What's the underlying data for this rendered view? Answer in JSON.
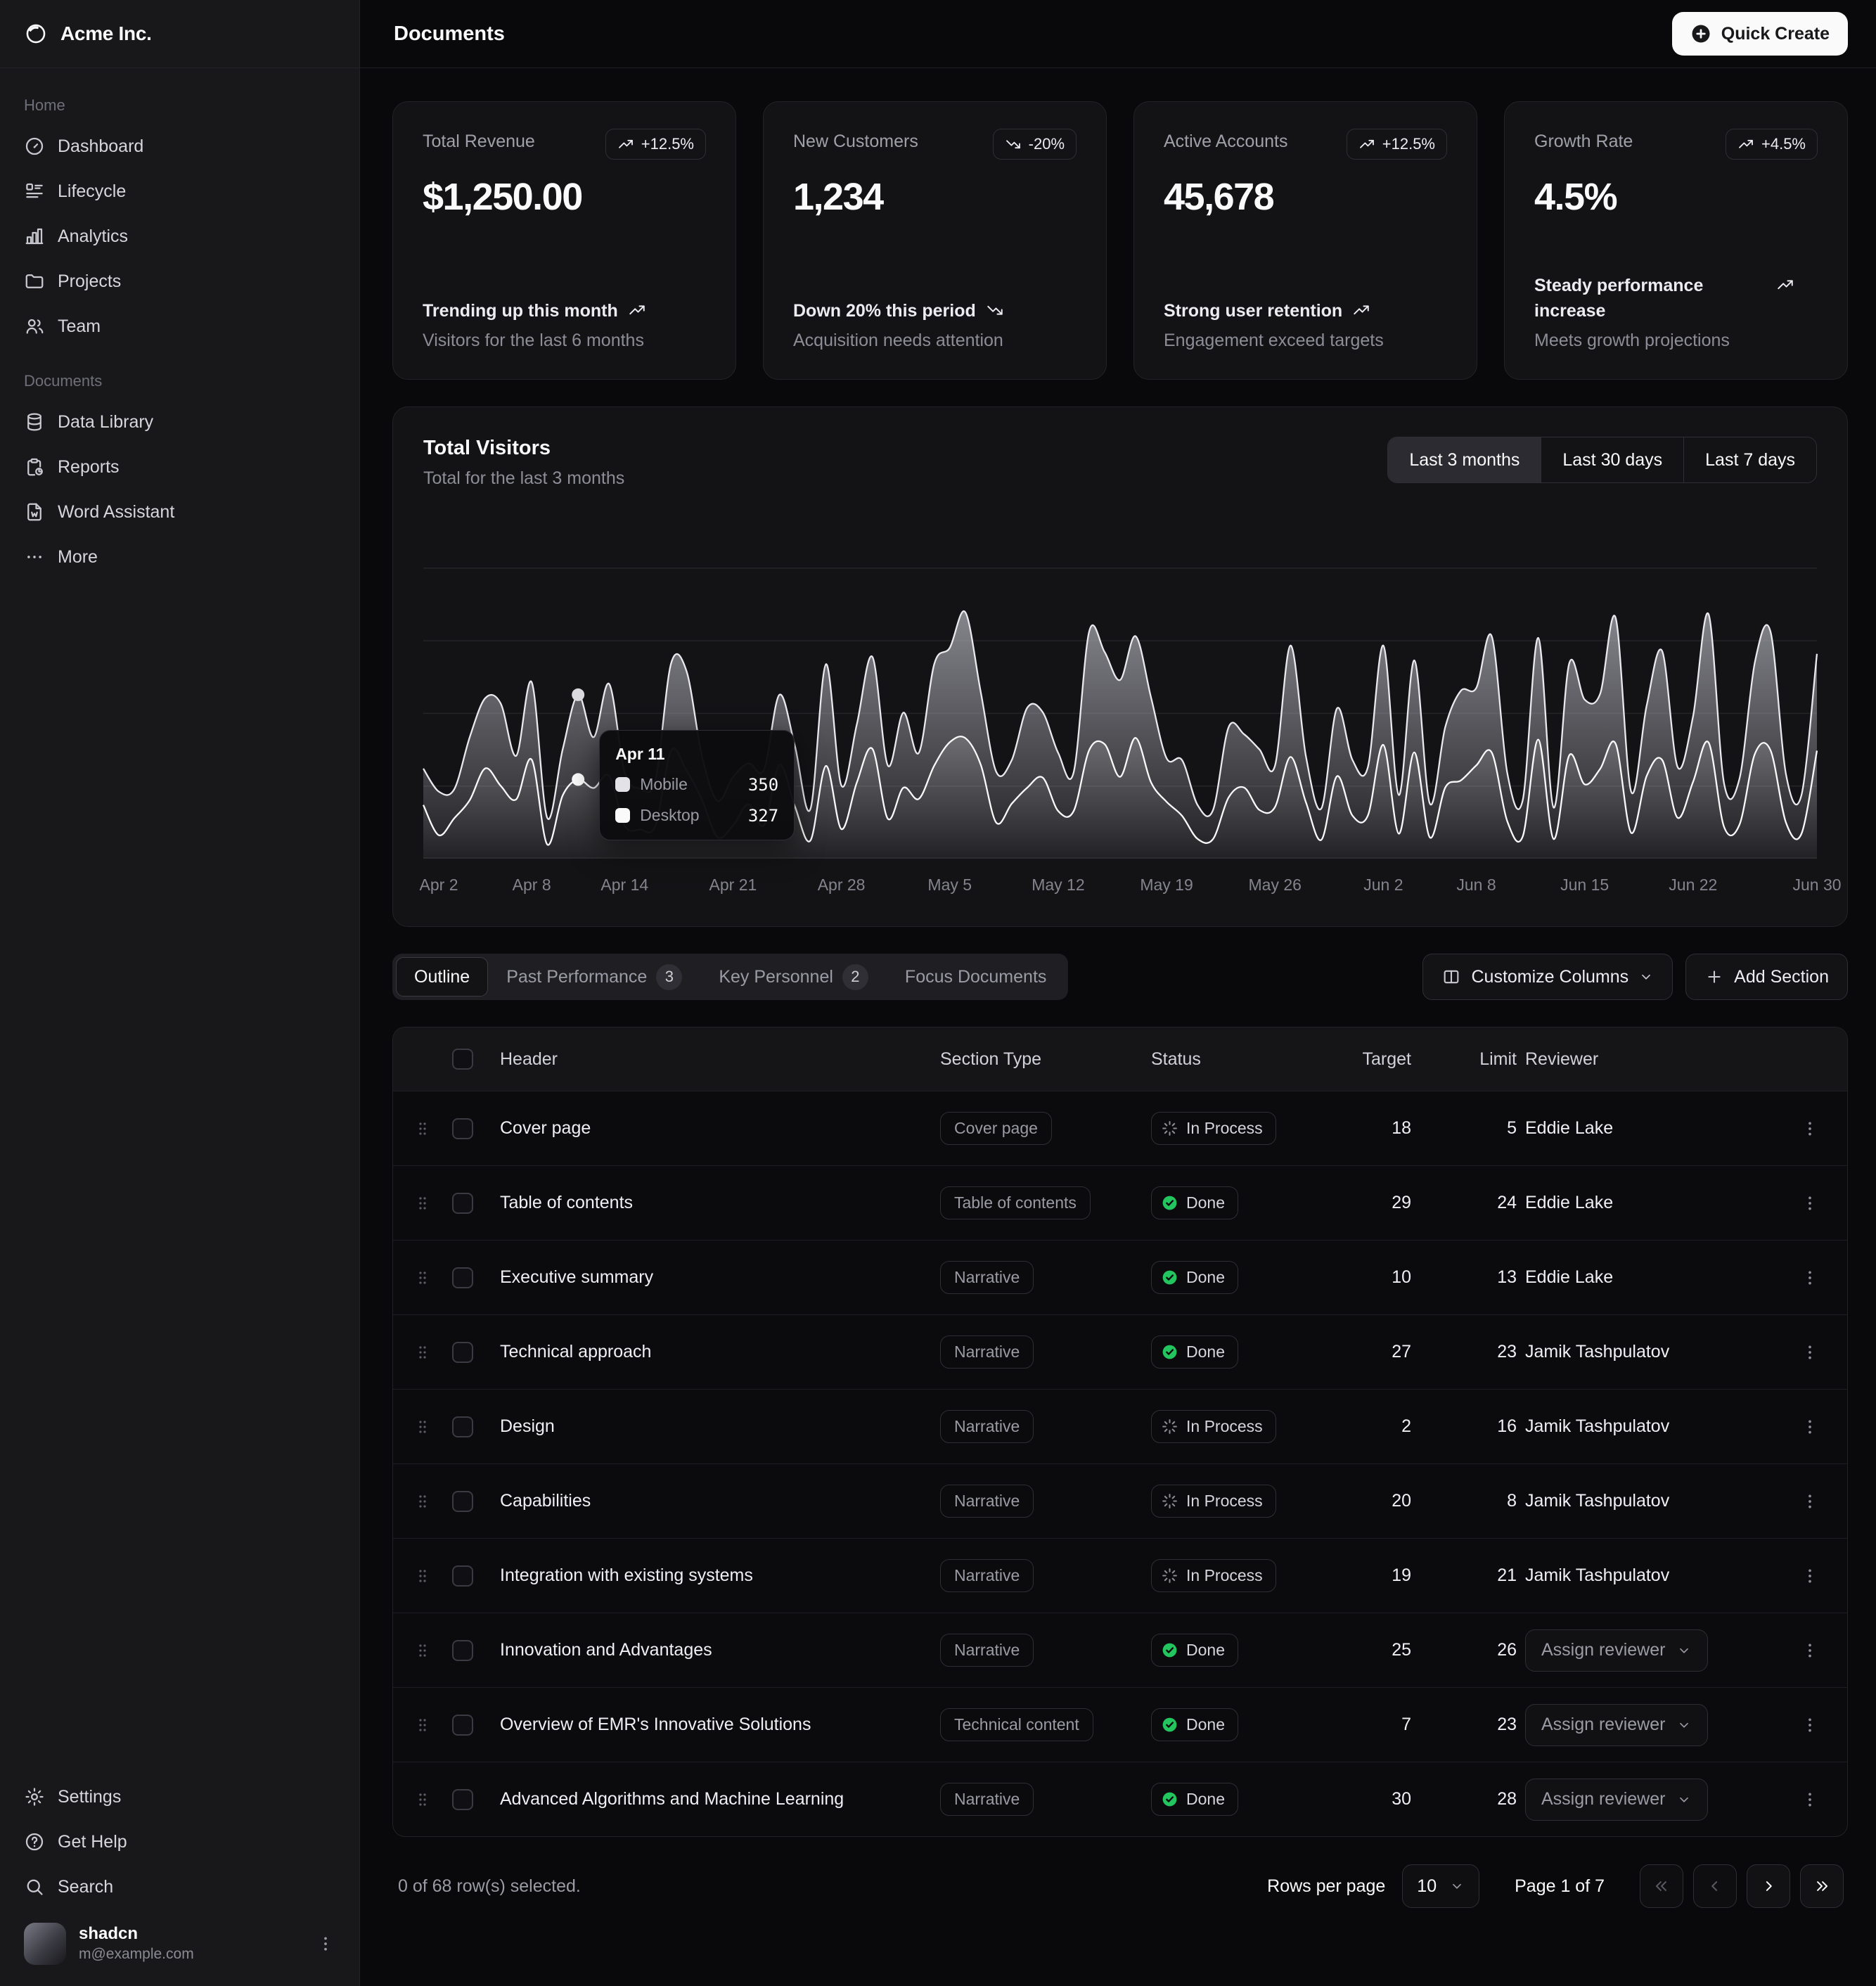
{
  "brand": {
    "name": "Acme Inc."
  },
  "header": {
    "title": "Documents",
    "quick_create_label": "Quick Create"
  },
  "sidebar": {
    "groups": [
      {
        "label": "Home",
        "items": [
          {
            "icon": "dashboard",
            "label": "Dashboard"
          },
          {
            "icon": "lifecycle",
            "label": "Lifecycle"
          },
          {
            "icon": "analytics",
            "label": "Analytics"
          },
          {
            "icon": "projects",
            "label": "Projects"
          },
          {
            "icon": "team",
            "label": "Team"
          }
        ]
      },
      {
        "label": "Documents",
        "items": [
          {
            "icon": "database",
            "label": "Data Library"
          },
          {
            "icon": "reports",
            "label": "Reports"
          },
          {
            "icon": "word",
            "label": "Word Assistant"
          },
          {
            "icon": "dots",
            "label": "More"
          }
        ]
      }
    ],
    "footer_items": [
      {
        "icon": "settings",
        "label": "Settings"
      },
      {
        "icon": "help",
        "label": "Get Help"
      },
      {
        "icon": "search",
        "label": "Search"
      }
    ],
    "user": {
      "name": "shadcn",
      "email": "m@example.com"
    }
  },
  "stats": [
    {
      "title": "Total Revenue",
      "badge": "+12.5%",
      "trend": "up",
      "value": "$1,250.00",
      "line1": "Trending up this month",
      "line2": "Visitors for the last 6 months"
    },
    {
      "title": "New Customers",
      "badge": "-20%",
      "trend": "down",
      "value": "1,234",
      "line1": "Down 20% this period",
      "line2": "Acquisition needs attention"
    },
    {
      "title": "Active Accounts",
      "badge": "+12.5%",
      "trend": "up",
      "value": "45,678",
      "line1": "Strong user retention",
      "line2": "Engagement exceed targets"
    },
    {
      "title": "Growth Rate",
      "badge": "+4.5%",
      "trend": "up",
      "value": "4.5%",
      "line1": "Steady performance increase",
      "line2": "Meets growth projections"
    }
  ],
  "chart": {
    "title": "Total Visitors",
    "subtitle": "Total for the last 3 months",
    "range_options": [
      "Last 3 months",
      "Last 30 days",
      "Last 7 days"
    ],
    "selected_range": "Last 3 months",
    "tooltip": {
      "date": "Apr 11",
      "rows": [
        {
          "label": "Mobile",
          "value": "350"
        },
        {
          "label": "Desktop",
          "value": "327"
        }
      ]
    }
  },
  "chart_data": {
    "type": "area",
    "stacked": true,
    "title": "Total Visitors",
    "legend_position": "none",
    "grid": true,
    "ylim": [
      0,
      1400
    ],
    "gridline_values": [
      300,
      600,
      900,
      1200
    ],
    "highlight_x": "Apr 11",
    "x": [
      "Apr 1",
      "Apr 2",
      "Apr 3",
      "Apr 4",
      "Apr 5",
      "Apr 6",
      "Apr 7",
      "Apr 8",
      "Apr 9",
      "Apr 10",
      "Apr 11",
      "Apr 12",
      "Apr 13",
      "Apr 14",
      "Apr 15",
      "Apr 16",
      "Apr 17",
      "Apr 18",
      "Apr 19",
      "Apr 20",
      "Apr 21",
      "Apr 22",
      "Apr 23",
      "Apr 24",
      "Apr 25",
      "Apr 26",
      "Apr 27",
      "Apr 28",
      "Apr 29",
      "Apr 30",
      "May 1",
      "May 2",
      "May 3",
      "May 4",
      "May 5",
      "May 6",
      "May 7",
      "May 8",
      "May 9",
      "May 10",
      "May 11",
      "May 12",
      "May 13",
      "May 14",
      "May 15",
      "May 16",
      "May 17",
      "May 18",
      "May 19",
      "May 20",
      "May 21",
      "May 22",
      "May 23",
      "May 24",
      "May 25",
      "May 26",
      "May 27",
      "May 28",
      "May 29",
      "May 30",
      "May 31",
      "Jun 1",
      "Jun 2",
      "Jun 3",
      "Jun 4",
      "Jun 5",
      "Jun 6",
      "Jun 7",
      "Jun 8",
      "Jun 9",
      "Jun 10",
      "Jun 11",
      "Jun 12",
      "Jun 13",
      "Jun 14",
      "Jun 15",
      "Jun 16",
      "Jun 17",
      "Jun 18",
      "Jun 19",
      "Jun 20",
      "Jun 21",
      "Jun 22",
      "Jun 23",
      "Jun 24",
      "Jun 25",
      "Jun 26",
      "Jun 27",
      "Jun 28",
      "Jun 29",
      "Jun 30"
    ],
    "series": [
      {
        "name": "Desktop",
        "values": [
          222,
          97,
          167,
          242,
          373,
          301,
          245,
          409,
          59,
          261,
          327,
          292,
          342,
          137,
          120,
          138,
          446,
          364,
          243,
          89,
          137,
          224,
          138,
          387,
          215,
          75,
          383,
          122,
          315,
          454,
          165,
          293,
          247,
          385,
          481,
          498,
          388,
          149,
          227,
          293,
          335,
          197,
          197,
          448,
          473,
          338,
          499,
          315,
          235,
          177,
          82,
          81,
          252,
          294,
          201,
          213,
          420,
          233,
          78,
          340,
          178,
          178,
          470,
          103,
          439,
          88,
          294,
          323,
          385,
          438,
          155,
          92,
          492,
          81,
          426,
          307,
          371,
          475,
          107,
          341,
          408,
          169,
          317,
          480,
          132,
          141,
          434,
          448,
          149,
          103,
          446
        ]
      },
      {
        "name": "Mobile",
        "values": [
          150,
          180,
          120,
          260,
          290,
          340,
          180,
          320,
          110,
          190,
          350,
          210,
          380,
          220,
          170,
          190,
          360,
          410,
          180,
          150,
          200,
          170,
          230,
          290,
          250,
          130,
          420,
          180,
          240,
          380,
          220,
          310,
          190,
          420,
          390,
          520,
          300,
          210,
          180,
          330,
          270,
          240,
          160,
          490,
          380,
          400,
          420,
          350,
          180,
          230,
          140,
          120,
          290,
          220,
          250,
          170,
          460,
          190,
          130,
          280,
          230,
          200,
          410,
          160,
          380,
          140,
          250,
          370,
          320,
          480,
          200,
          150,
          420,
          130,
          380,
          350,
          310,
          520,
          170,
          290,
          450,
          210,
          270,
          530,
          180,
          190,
          380,
          490,
          200,
          160,
          400
        ]
      }
    ],
    "x_ticks": [
      {
        "label": "Apr 2",
        "index": 1
      },
      {
        "label": "Apr 8",
        "index": 7
      },
      {
        "label": "Apr 14",
        "index": 13
      },
      {
        "label": "Apr 21",
        "index": 20
      },
      {
        "label": "Apr 28",
        "index": 27
      },
      {
        "label": "May 5",
        "index": 34
      },
      {
        "label": "May 12",
        "index": 41
      },
      {
        "label": "May 19",
        "index": 48
      },
      {
        "label": "May 26",
        "index": 55
      },
      {
        "label": "Jun 2",
        "index": 62
      },
      {
        "label": "Jun 8",
        "index": 68
      },
      {
        "label": "Jun 15",
        "index": 75
      },
      {
        "label": "Jun 22",
        "index": 82
      },
      {
        "label": "Jun 30",
        "index": 90
      }
    ]
  },
  "tabs": [
    {
      "label": "Outline",
      "active": true
    },
    {
      "label": "Past Performance",
      "badge": "3"
    },
    {
      "label": "Key Personnel",
      "badge": "2"
    },
    {
      "label": "Focus Documents"
    }
  ],
  "table_actions": {
    "customize_label": "Customize Columns",
    "add_label": "Add Section"
  },
  "table": {
    "columns": [
      "Header",
      "Section Type",
      "Status",
      "Target",
      "Limit",
      "Reviewer"
    ],
    "assign_label": "Assign reviewer",
    "rows": [
      {
        "header": "Cover page",
        "type": "Cover page",
        "status": "In Process",
        "target": "18",
        "limit": "5",
        "reviewer": "Eddie Lake"
      },
      {
        "header": "Table of contents",
        "type": "Table of contents",
        "status": "Done",
        "target": "29",
        "limit": "24",
        "reviewer": "Eddie Lake"
      },
      {
        "header": "Executive summary",
        "type": "Narrative",
        "status": "Done",
        "target": "10",
        "limit": "13",
        "reviewer": "Eddie Lake"
      },
      {
        "header": "Technical approach",
        "type": "Narrative",
        "status": "Done",
        "target": "27",
        "limit": "23",
        "reviewer": "Jamik Tashpulatov"
      },
      {
        "header": "Design",
        "type": "Narrative",
        "status": "In Process",
        "target": "2",
        "limit": "16",
        "reviewer": "Jamik Tashpulatov"
      },
      {
        "header": "Capabilities",
        "type": "Narrative",
        "status": "In Process",
        "target": "20",
        "limit": "8",
        "reviewer": "Jamik Tashpulatov"
      },
      {
        "header": "Integration with existing systems",
        "type": "Narrative",
        "status": "In Process",
        "target": "19",
        "limit": "21",
        "reviewer": "Jamik Tashpulatov"
      },
      {
        "header": "Innovation and Advantages",
        "type": "Narrative",
        "status": "Done",
        "target": "25",
        "limit": "26",
        "reviewer": null
      },
      {
        "header": "Overview of EMR's Innovative Solutions",
        "type": "Technical content",
        "status": "Done",
        "target": "7",
        "limit": "23",
        "reviewer": null
      },
      {
        "header": "Advanced Algorithms and Machine Learning",
        "type": "Narrative",
        "status": "Done",
        "target": "30",
        "limit": "28",
        "reviewer": null
      }
    ]
  },
  "footer": {
    "selected_text": "0 of 68 row(s) selected.",
    "rows_per_page_label": "Rows per page",
    "rows_per_page_value": "10",
    "page_info": "Page 1 of 7"
  },
  "colors": {
    "background": "#09090b",
    "sidebar": "#18181b",
    "card": "#131316",
    "border": "#232327",
    "accent_green": "#22c55e",
    "muted_text": "#9b9ba5",
    "white": "#fafafa"
  }
}
